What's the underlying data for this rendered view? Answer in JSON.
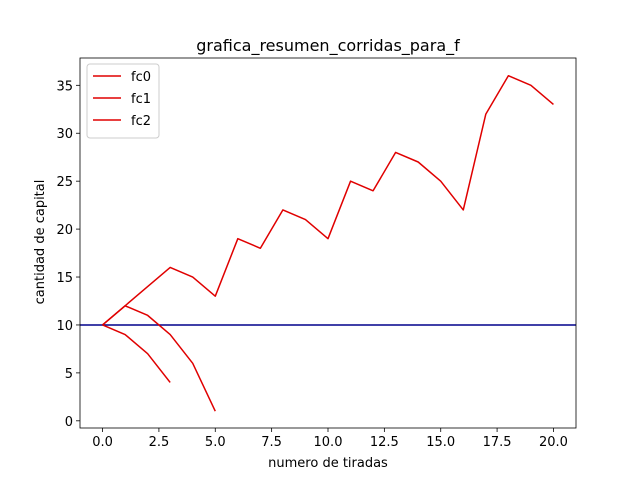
{
  "chart_data": {
    "type": "line",
    "title": "grafica_resumen_corridas_para_f",
    "xlabel": "numero de tiradas",
    "ylabel": "cantidad de capital",
    "xlim": [
      -1.0,
      21.0
    ],
    "ylim": [
      -0.75,
      37.85
    ],
    "xticks": [
      0.0,
      2.5,
      5.0,
      7.5,
      10.0,
      12.5,
      15.0,
      17.5,
      20.0
    ],
    "xtick_labels": [
      "0.0",
      "2.5",
      "5.0",
      "7.5",
      "10.0",
      "12.5",
      "15.0",
      "17.5",
      "20.0"
    ],
    "yticks": [
      0,
      5,
      10,
      15,
      20,
      25,
      30,
      35
    ],
    "ytick_labels": [
      "0",
      "5",
      "10",
      "15",
      "20",
      "25",
      "30",
      "35"
    ],
    "grid": false,
    "legend_position": "top-left",
    "series": [
      {
        "name": "fc0",
        "color": "#e00000",
        "x": [
          0,
          1,
          2,
          3,
          4,
          5,
          6,
          7,
          8,
          9,
          10,
          11,
          12,
          13,
          14,
          15,
          16,
          17,
          18,
          19,
          20
        ],
        "y": [
          10,
          12,
          14,
          16,
          15,
          13,
          19,
          18,
          22,
          21,
          19,
          25,
          24,
          28,
          27,
          25,
          22,
          32,
          36,
          35,
          33
        ]
      },
      {
        "name": "fc1",
        "color": "#e00000",
        "x": [
          0,
          1,
          2,
          3,
          4,
          5
        ],
        "y": [
          10,
          12,
          11,
          9,
          6,
          1
        ]
      },
      {
        "name": "fc2",
        "color": "#e00000",
        "x": [
          0,
          1,
          2,
          3
        ],
        "y": [
          10,
          9,
          7,
          4
        ]
      }
    ],
    "reference_line": {
      "y": 10,
      "color": "#00008b"
    }
  }
}
